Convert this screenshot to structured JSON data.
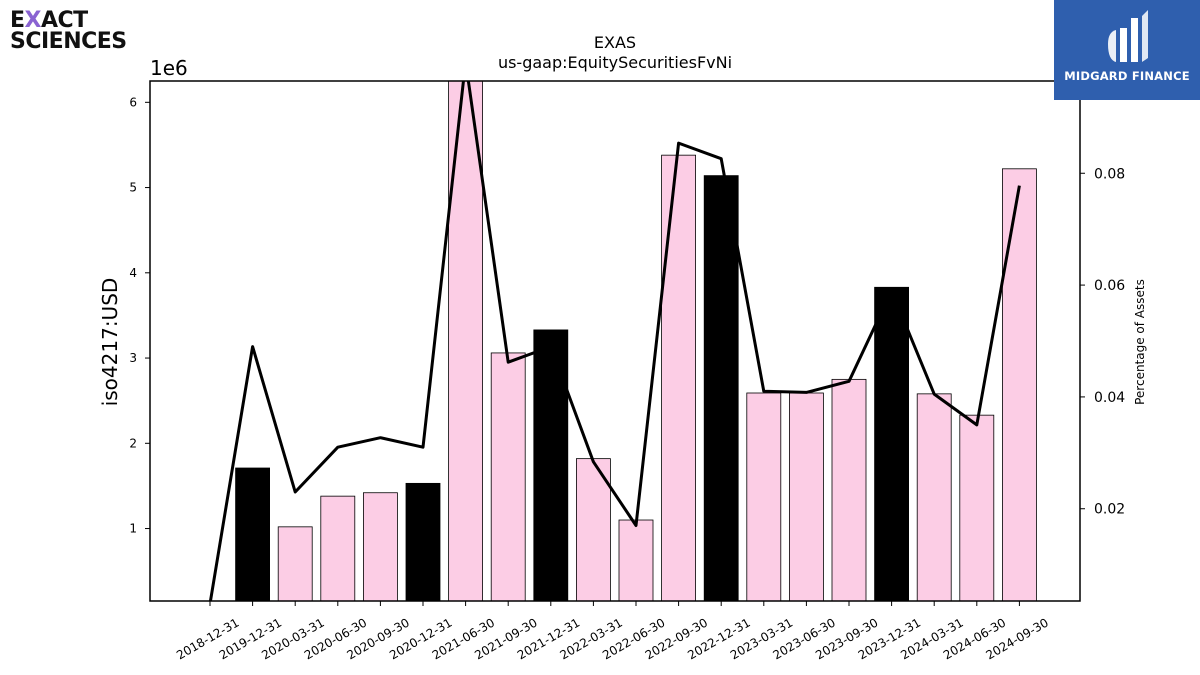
{
  "brand": {
    "left_logo_line1_pre": "E",
    "left_logo_line1_x": "X",
    "left_logo_line1_post": "ACT",
    "left_logo_line2": "SCIENCES",
    "right_logo_name": "MIDGARD FINANCE",
    "right_logo_color": "#2f5fae"
  },
  "chart_data": {
    "type": "bar",
    "title": "EXAS",
    "subtitle": "us-gaap:EquitySecuritiesFvNi",
    "ylabel": "iso4217:USD",
    "y_multiplier_label": "1e6",
    "y2label": "Percentage of Assets",
    "ylim": [
      0.15,
      6.25
    ],
    "y_ticks": [
      1,
      2,
      3,
      4,
      5,
      6
    ],
    "y2lim": [
      0.0035,
      0.0965
    ],
    "y2_ticks": [
      0.02,
      0.04,
      0.06,
      0.08
    ],
    "y2_tick_labels": [
      "0.02",
      "0.04",
      "0.06",
      "0.08"
    ],
    "categories": [
      "2018-12-31",
      "2019-12-31",
      "2020-03-31",
      "2020-06-30",
      "2020-09-30",
      "2020-12-31",
      "2021-06-30",
      "2021-09-30",
      "2021-12-31",
      "2022-03-31",
      "2022-06-30",
      "2022-09-30",
      "2022-12-31",
      "2023-03-31",
      "2023-06-30",
      "2023-09-30",
      "2023-12-31",
      "2024-03-31",
      "2024-06-30",
      "2024-09-30"
    ],
    "values_millions": [
      null,
      1.71,
      1.02,
      1.38,
      1.42,
      1.53,
      6.25,
      3.06,
      3.33,
      1.82,
      1.1,
      5.38,
      5.14,
      2.59,
      2.59,
      2.75,
      3.83,
      2.58,
      2.33,
      5.22
    ],
    "bar_highlight": [
      false,
      true,
      false,
      false,
      false,
      true,
      false,
      false,
      true,
      false,
      false,
      false,
      true,
      false,
      false,
      false,
      true,
      false,
      false,
      false
    ],
    "percentage_of_assets": [
      0.003,
      0.049,
      0.023,
      0.031,
      0.0327,
      0.031,
      0.1,
      0.0462,
      0.049,
      0.0284,
      0.017,
      0.0854,
      0.0826,
      0.041,
      0.0408,
      0.0428,
      0.059,
      0.0405,
      0.035,
      0.0778
    ],
    "colors": {
      "bar": "#fccde5",
      "bar_highlight": "#000000",
      "line": "#000000"
    },
    "grid": false
  }
}
